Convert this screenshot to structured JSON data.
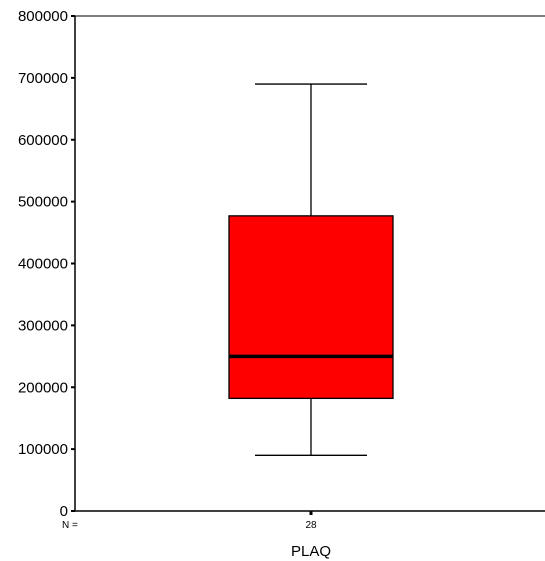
{
  "chart_data": {
    "type": "boxplot",
    "xlabel": "PLAQ",
    "ylabel": "",
    "ylim": [
      0,
      800000
    ],
    "yticks": [
      0,
      100000,
      200000,
      300000,
      400000,
      500000,
      600000,
      700000,
      800000
    ],
    "ytick_labels": [
      "0",
      "100000",
      "200000",
      "300000",
      "400000",
      "500000",
      "600000",
      "700000",
      "800000"
    ],
    "n_prefix": "N =",
    "grid": false,
    "series": [
      {
        "n": "28",
        "whisker_low": 90000,
        "q1": 182000,
        "median": 250000,
        "q3": 477000,
        "whisker_high": 690000,
        "color": "#ff0000"
      }
    ]
  }
}
